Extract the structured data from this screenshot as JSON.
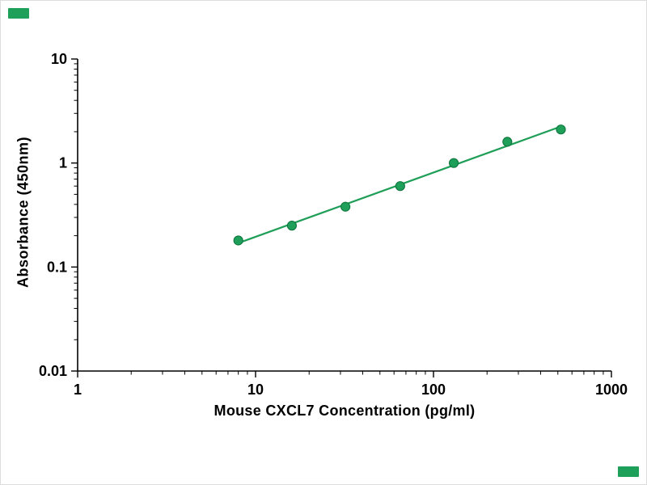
{
  "watermark": {
    "color": "#1fa05a"
  },
  "chart_data": {
    "type": "scatter",
    "has_trend_line": true,
    "x": [
      8,
      16,
      32,
      65,
      130,
      260,
      520
    ],
    "y": [
      0.18,
      0.25,
      0.38,
      0.6,
      1.0,
      1.6,
      2.1
    ],
    "title": "",
    "xlabel": "Mouse CXCL7 Concentration (pg/ml)",
    "ylabel": "Absorbance (450nm)",
    "xscale": "log",
    "yscale": "log",
    "xlim": [
      1,
      1000
    ],
    "ylim": [
      0.01,
      10
    ],
    "x_ticks": [
      1,
      10,
      100,
      1000
    ],
    "x_tick_labels": [
      "1",
      "10",
      "100",
      "1000"
    ],
    "y_ticks": [
      0.01,
      0.1,
      1,
      10
    ],
    "y_tick_labels": [
      "0.01",
      "0.1",
      "1",
      "10"
    ],
    "grid": false,
    "legend": null,
    "marker_color": "#1fa05a",
    "marker_edge_color": "#127a41",
    "line_color": "#1e9e57",
    "axis_color": "#000000",
    "tick_label_color": "#000000"
  }
}
